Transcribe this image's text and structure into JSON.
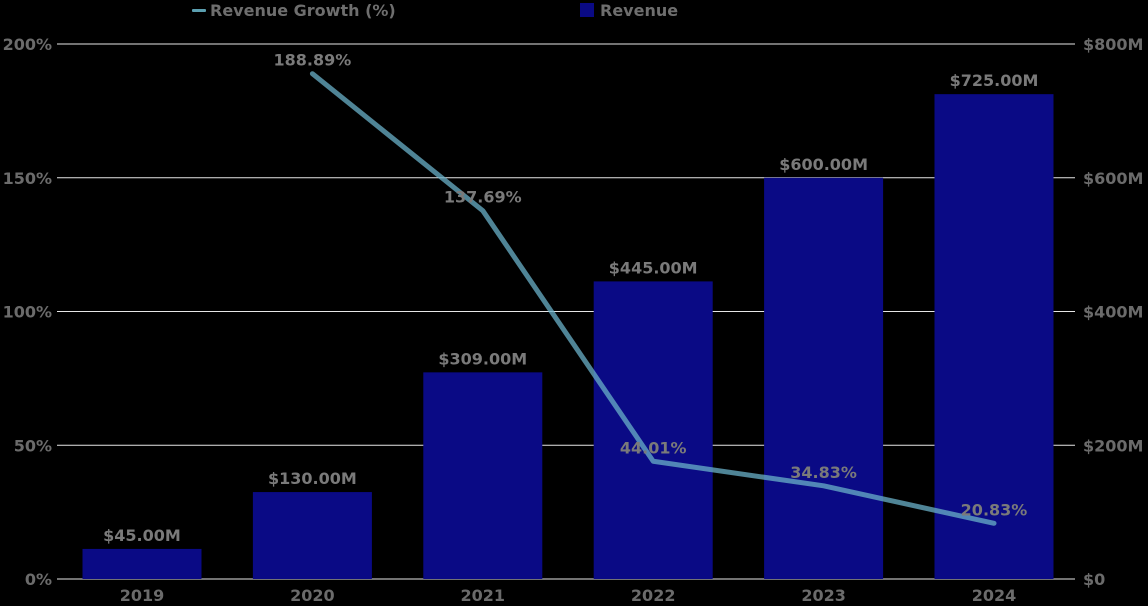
{
  "legend": {
    "growth_label": "Revenue Growth (%)",
    "revenue_label": "Revenue"
  },
  "axes": {
    "left_ticks": [
      "0%",
      "50%",
      "100%",
      "150%",
      "200%"
    ],
    "right_ticks": [
      "$0",
      "$200M",
      "$400M",
      "$600M",
      "$800M"
    ]
  },
  "colors": {
    "background": "#000000",
    "bar": "#0a0a85",
    "line": "#6ab0c8",
    "gridline": "#e6e6e6",
    "text": "#6e6e6e"
  },
  "chart_data": {
    "type": "bar",
    "title": "",
    "xlabel": "",
    "ylabel": "",
    "categories": [
      "2019",
      "2020",
      "2021",
      "2022",
      "2023",
      "2024"
    ],
    "series": [
      {
        "name": "Revenue",
        "type": "bar",
        "axis": "right",
        "unit": "$M",
        "values": [
          45,
          130,
          309,
          445,
          600,
          725
        ],
        "labels": [
          "$45.00M",
          "$130.00M",
          "$309.00M",
          "$445.00M",
          "$600.00M",
          "$725.00M"
        ]
      },
      {
        "name": "Revenue Growth (%)",
        "type": "line",
        "axis": "left",
        "unit": "%",
        "values": [
          null,
          188.89,
          137.69,
          44.01,
          34.83,
          20.83
        ],
        "labels": [
          "",
          "188.89%",
          "137.69%",
          "44.01%",
          "34.83%",
          "20.83%"
        ]
      }
    ],
    "ylim_left": [
      0,
      200
    ],
    "ylim_right": [
      0,
      800
    ],
    "left_ticks": [
      0,
      50,
      100,
      150,
      200
    ],
    "right_ticks": [
      0,
      200,
      400,
      600,
      800
    ],
    "grid": true,
    "legend_position": "top"
  }
}
